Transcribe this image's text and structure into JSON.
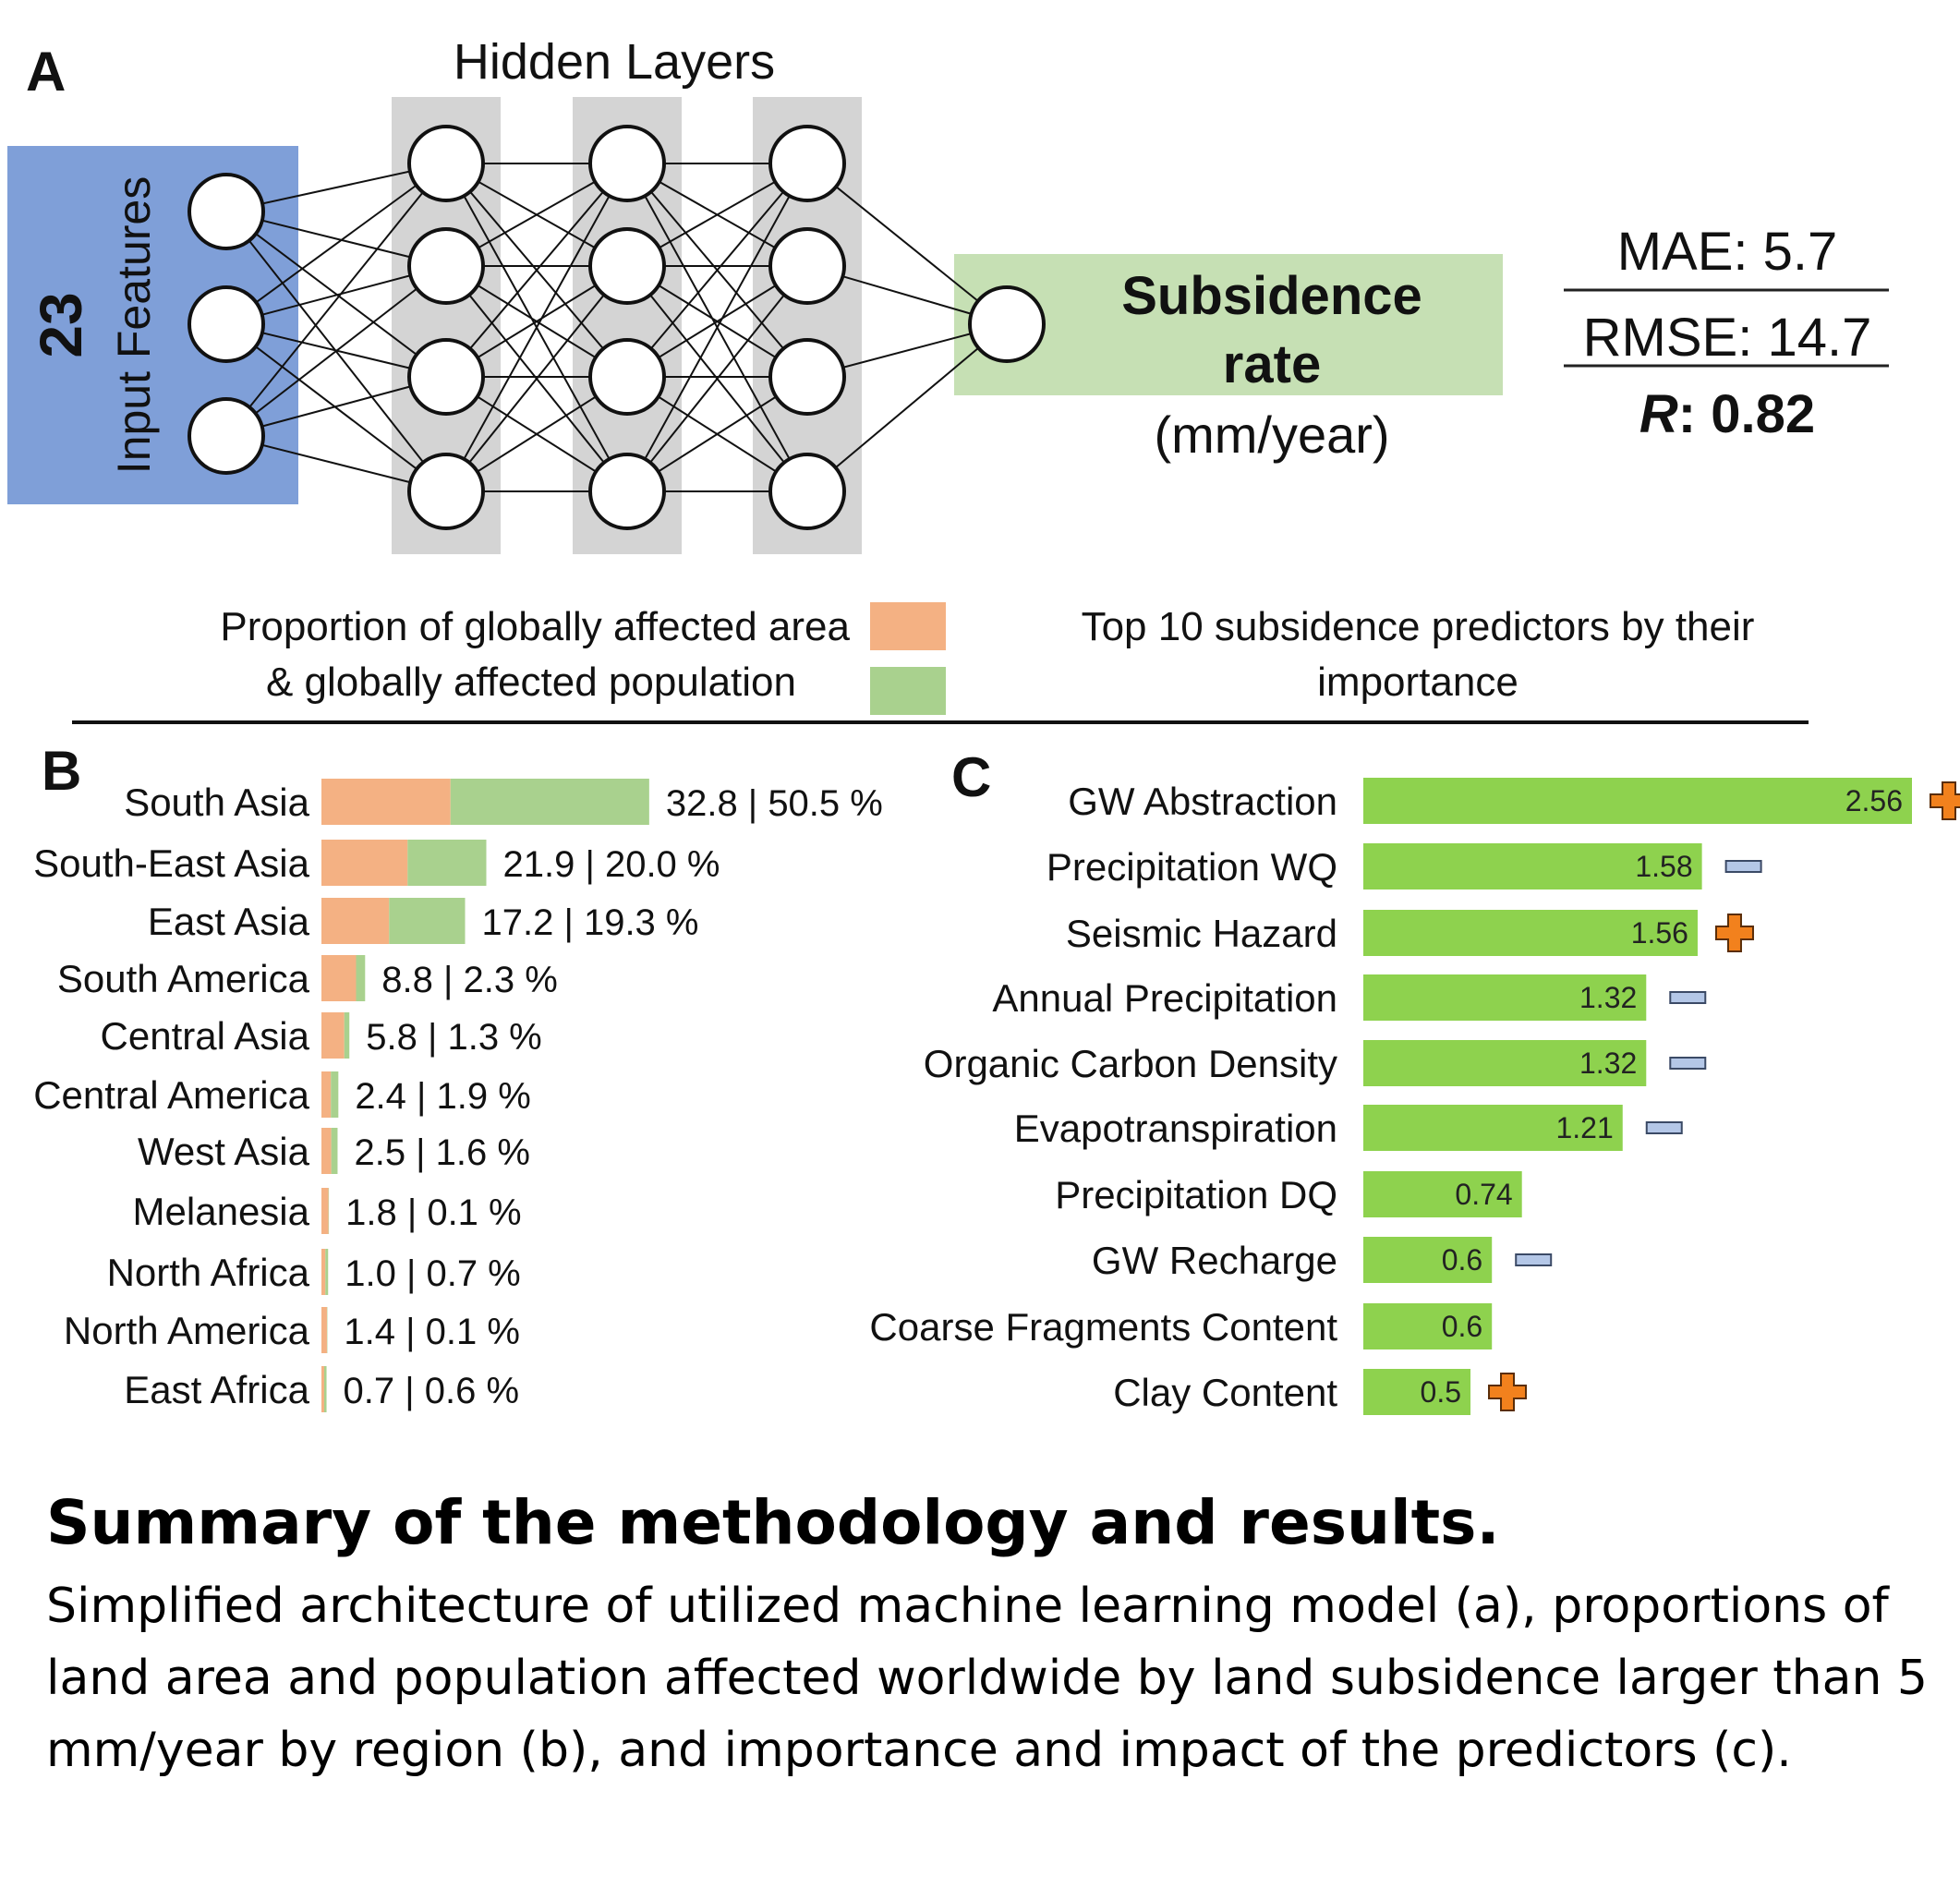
{
  "colors": {
    "input_box": "#7f9fd8",
    "hidden_layer": "#d4d4d4",
    "output_box": "#c6e0b4",
    "area_bar": "#f4b183",
    "population_bar": "#a9d18e",
    "predictor_bar": "#8ed24e",
    "plus_icon": "#f2811d",
    "minus_icon": "#b4c7e7"
  },
  "panel_a": {
    "label": "A",
    "hidden_layers_title": "Hidden Layers",
    "input_count": "23",
    "input_label": "Input Features",
    "output_title_line1": "Subsidence",
    "output_title_line2": "rate",
    "output_unit": "(mm/year)",
    "metrics": {
      "mae": "MAE: 5.7",
      "rmse": "RMSE: 14.7",
      "r_symbol": "R",
      "r_value": ": 0.82"
    }
  },
  "legend": {
    "left_line1": "Proportion of globally affected area",
    "left_line2": "& globally affected population",
    "right_line1": "Top 10 subsidence predictors by their",
    "right_line2": "importance"
  },
  "chart_data": [
    {
      "type": "bar",
      "panel": "B",
      "orientation": "horizontal",
      "categories": [
        "South Asia",
        "South-East Asia",
        "East Asia",
        "South America",
        "Central Asia",
        "Central America",
        "West Asia",
        "Melanesia",
        "North Africa",
        "North America",
        "East Africa"
      ],
      "series": [
        {
          "values": [
            32.8,
            21.9,
            17.2,
            8.8,
            5.8,
            2.4,
            2.5,
            1.8,
            1.0,
            1.4,
            0.7
          ]
        },
        {
          "values": [
            50.5,
            20.0,
            19.3,
            2.3,
            1.3,
            1.9,
            1.6,
            0.1,
            0.7,
            0.1,
            0.6
          ]
        }
      ],
      "data_labels": [
        "32.8 | 50.5 %",
        "21.9 | 20.0 %",
        "17.2 | 19.3 %",
        "8.8 | 2.3 %",
        "5.8 | 1.3 %",
        "2.4 | 1.9 %",
        "2.5 | 1.6 %",
        "1.8 | 0.1 %",
        "1.0 | 0.7 %",
        "1.4 | 0.1 %",
        "0.7 | 0.6 %"
      ],
      "title": "",
      "xlabel": "",
      "ylabel": ""
    },
    {
      "type": "bar",
      "panel": "C",
      "orientation": "horizontal",
      "categories": [
        "GW Abstraction",
        "Precipitation WQ",
        "Seismic Hazard",
        "Annual Precipitation",
        "Organic Carbon Density",
        "Evapotranspiration",
        "Precipitation DQ",
        "GW Recharge",
        "Coarse Fragments Content",
        "Clay Content"
      ],
      "values": [
        2.56,
        1.58,
        1.56,
        1.32,
        1.32,
        1.21,
        0.74,
        0.6,
        0.6,
        0.5
      ],
      "value_labels": [
        "2.56",
        "1.58",
        "1.56",
        "1.32",
        "1.32",
        "1.21",
        "0.74",
        "0.6",
        "0.6",
        "0.5"
      ],
      "impact": [
        "plus",
        "minus",
        "plus",
        "minus",
        "minus",
        "minus",
        "none",
        "minus",
        "none",
        "plus"
      ],
      "title": "",
      "xlabel": "",
      "ylabel": ""
    }
  ],
  "caption": {
    "title": "Summary of the methodology and results.",
    "body": "Simplified architecture of utilized machine learning model (a), proportions of land area and population affected worldwide by land subsidence larger than 5 mm/year by region (b), and importance and impact of the predictors (c)."
  }
}
